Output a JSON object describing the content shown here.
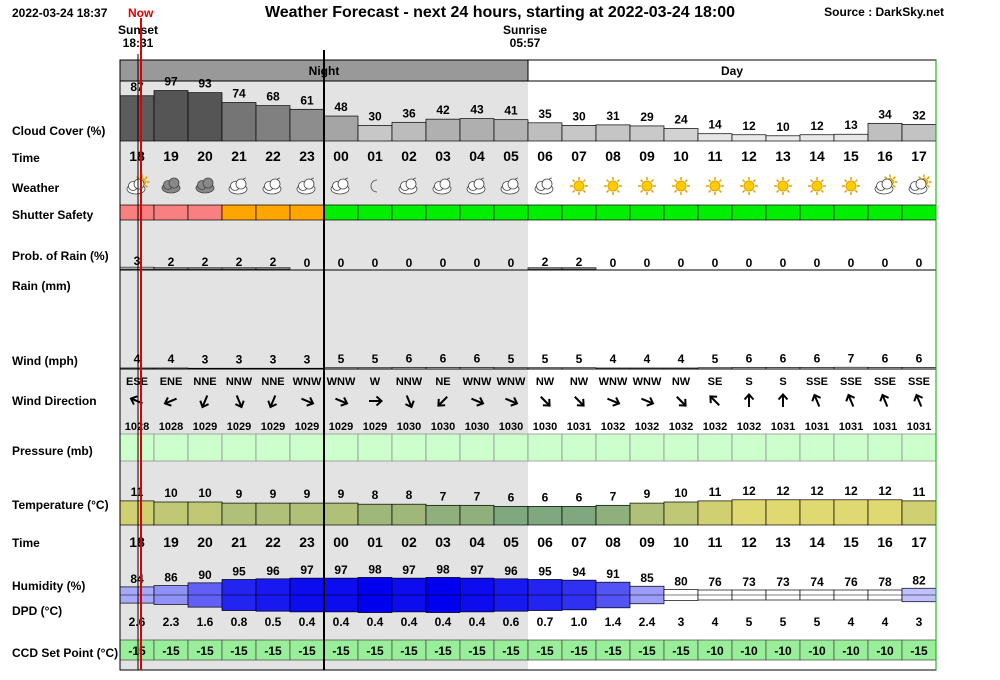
{
  "header": {
    "date": "2022-03-24 18:37",
    "now_label": "Now",
    "title": "Weather Forecast - next 24 hours, starting at 2022-03-24 18:00",
    "source": "Source : DarkSky.net"
  },
  "sun": {
    "sunset_label": "Sunset",
    "sunset_time": "18:31",
    "sunrise_label": "Sunrise",
    "sunrise_time": "05:57"
  },
  "periods": {
    "night": "Night",
    "day": "Day"
  },
  "row_labels": {
    "cloud": "Cloud Cover (%)",
    "time": "Time",
    "weather": "Weather",
    "shutter": "Shutter Safety",
    "prob_rain": "Prob. of Rain (%)",
    "rain": "Rain (mm)",
    "wind": "Wind (mph)",
    "wind_dir": "Wind Direction",
    "pressure": "Pressure (mb)",
    "temperature": "Temperature (°C)",
    "time2": "Time",
    "humidity": "Humidity (%)",
    "dpd": "DPD (°C)",
    "ccd": "CCD Set Point (°C)"
  },
  "hours": [
    "18",
    "19",
    "20",
    "21",
    "22",
    "23",
    "00",
    "01",
    "02",
    "03",
    "04",
    "05",
    "06",
    "07",
    "08",
    "09",
    "10",
    "11",
    "12",
    "13",
    "14",
    "15",
    "16",
    "17"
  ],
  "night_hours": 12,
  "cloud_cover": [
    87,
    97,
    93,
    74,
    68,
    61,
    48,
    30,
    36,
    42,
    43,
    41,
    35,
    30,
    31,
    29,
    24,
    14,
    12,
    10,
    12,
    13,
    34,
    32
  ],
  "weather_icons": [
    "partly-cloudy-day-icon",
    "cloudy-icon",
    "cloudy-icon",
    "partly-cloudy-night-icon",
    "partly-cloudy-night-icon",
    "partly-cloudy-night-icon",
    "partly-cloudy-night-icon",
    "clear-night-icon",
    "partly-cloudy-night-icon",
    "partly-cloudy-night-icon",
    "partly-cloudy-night-icon",
    "partly-cloudy-night-icon",
    "partly-cloudy-night-icon",
    "clear-day-icon",
    "clear-day-icon",
    "clear-day-icon",
    "clear-day-icon",
    "clear-day-icon",
    "clear-day-icon",
    "clear-day-icon",
    "clear-day-icon",
    "clear-day-icon",
    "partly-cloudy-day-icon",
    "partly-cloudy-day-icon"
  ],
  "shutter_safety": [
    "unsafe",
    "unsafe",
    "unsafe",
    "caution",
    "caution",
    "caution",
    "safe",
    "safe",
    "safe",
    "safe",
    "safe",
    "safe",
    "safe",
    "safe",
    "safe",
    "safe",
    "safe",
    "safe",
    "safe",
    "safe",
    "safe",
    "safe",
    "safe",
    "safe"
  ],
  "shutter_colors": {
    "unsafe": "#f88080",
    "caution": "#ffa500",
    "safe": "#00ee00"
  },
  "prob_rain": [
    3,
    2,
    2,
    2,
    2,
    0,
    0,
    0,
    0,
    0,
    0,
    0,
    2,
    2,
    0,
    0,
    0,
    0,
    0,
    0,
    0,
    0,
    0,
    0
  ],
  "wind_speed": [
    4,
    4,
    3,
    3,
    3,
    3,
    5,
    5,
    6,
    6,
    6,
    5,
    5,
    5,
    4,
    4,
    4,
    5,
    6,
    6,
    6,
    7,
    6,
    6
  ],
  "wind_direction": [
    "ESE",
    "ENE",
    "NNE",
    "NNW",
    "NNE",
    "WNW",
    "WNW",
    "W",
    "NNW",
    "NE",
    "WNW",
    "WNW",
    "NW",
    "NW",
    "WNW",
    "WNW",
    "NW",
    "SE",
    "S",
    "S",
    "SSE",
    "SSE",
    "SSE",
    "SSE"
  ],
  "pressure": [
    1028,
    1028,
    1029,
    1029,
    1029,
    1029,
    1029,
    1029,
    1030,
    1030,
    1030,
    1030,
    1030,
    1031,
    1032,
    1032,
    1032,
    1032,
    1032,
    1031,
    1031,
    1031,
    1031,
    1031
  ],
  "temperature": [
    11,
    10,
    10,
    9,
    9,
    9,
    9,
    8,
    8,
    7,
    7,
    6,
    6,
    6,
    7,
    9,
    10,
    11,
    12,
    12,
    12,
    12,
    12,
    11
  ],
  "humidity": [
    84,
    86,
    90,
    95,
    96,
    97,
    97,
    98,
    97,
    98,
    97,
    96,
    95,
    94,
    91,
    85,
    80,
    76,
    73,
    73,
    74,
    76,
    78,
    82
  ],
  "dpd": [
    "2.6",
    "2.3",
    "1.6",
    "0.8",
    "0.5",
    "0.4",
    "0.4",
    "0.4",
    "0.4",
    "0.4",
    "0.4",
    "0.6",
    "0.7",
    "1.0",
    "1.4",
    "2.4",
    "3",
    "4",
    "5",
    "5",
    "5",
    "4",
    "4",
    "3"
  ],
  "ccd_set_point": [
    -15,
    -15,
    -15,
    -15,
    -15,
    -15,
    -15,
    -15,
    -15,
    -15,
    -15,
    -15,
    -15,
    -15,
    -15,
    -15,
    -15,
    -10,
    -10,
    -10,
    -10,
    -10,
    -10,
    -15
  ],
  "colors": {
    "night_band": "#999999",
    "night_bg": "#e3e3e3",
    "now_line": "#e00000",
    "pressure_fill": "#ccffcc",
    "ccd_fill": "#99ee99",
    "cloud_dark": "#555555",
    "humidity_dark": "#0000ee"
  }
}
